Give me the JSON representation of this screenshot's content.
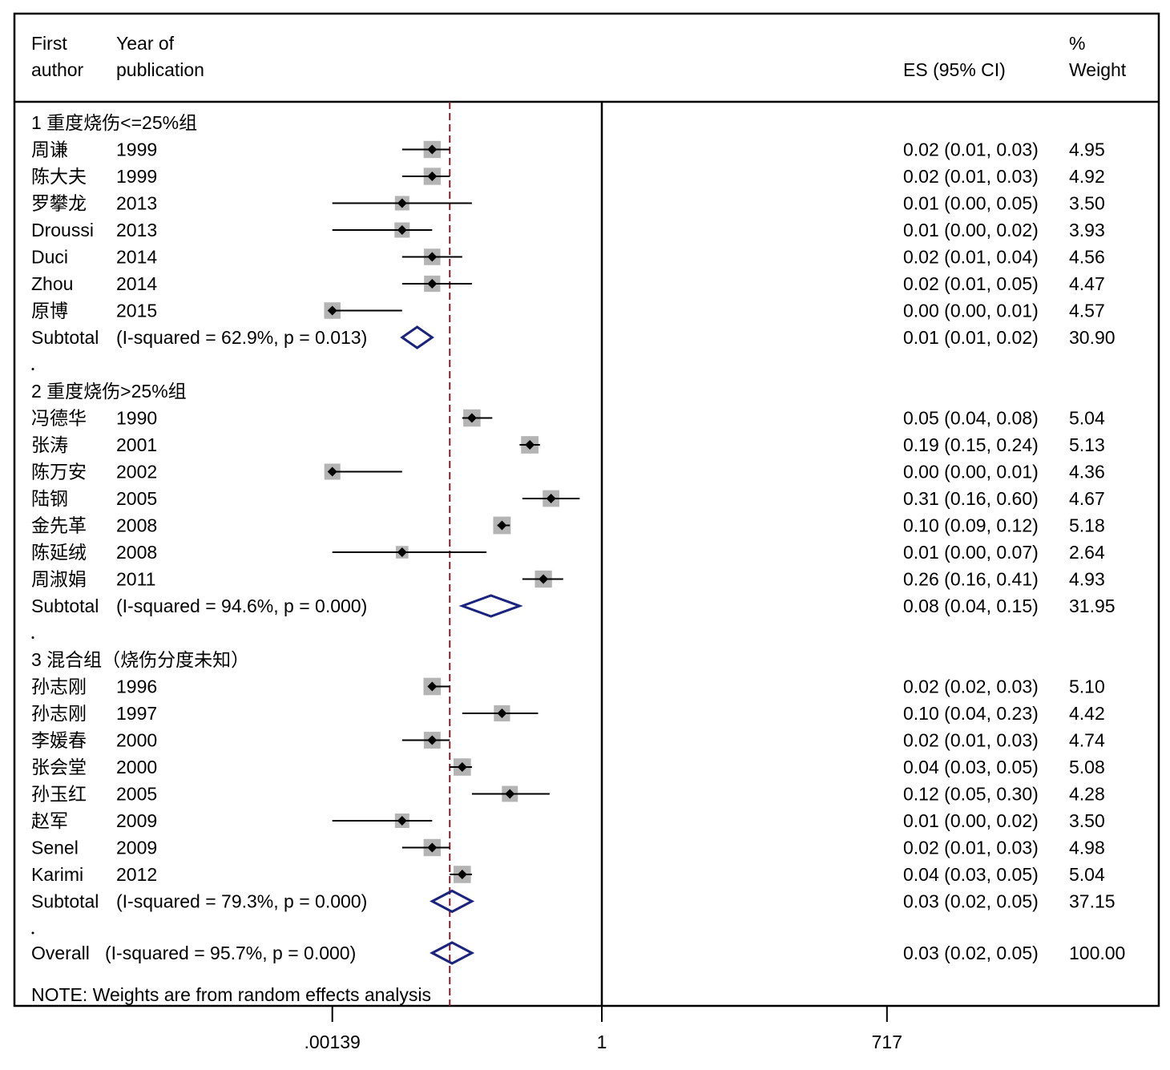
{
  "header": {
    "author_line1": "First",
    "author_line2": "author",
    "year_line1": "Year of",
    "year_line2": "publication",
    "es_label": "ES (95% CI)",
    "weight_line1": "%",
    "weight_line2": "Weight"
  },
  "note": "NOTE: Weights are from random effects analysis",
  "colors": {
    "ci_line": "#000000",
    "weight_box": "#b4b4b4",
    "diamond": "#1a237e",
    "null_line": "#8b1a2b"
  },
  "chart_data": {
    "type": "forest",
    "x_scale": "log",
    "x_ticks": [
      {
        "value": 0.00139,
        "label": ".00139"
      },
      {
        "value": 1,
        "label": "1"
      },
      {
        "value": 717,
        "label": "717"
      }
    ],
    "overall_reference": 0.03,
    "groups": [
      {
        "heading": "1 重度烧伤<=25%组",
        "studies": [
          {
            "author": "周谦",
            "year": "1999",
            "es": 0.02,
            "lo": 0.01,
            "hi": 0.03,
            "es_text": "0.02 (0.01, 0.03)",
            "weight": "4.95"
          },
          {
            "author": "陈大夫",
            "year": "1999",
            "es": 0.02,
            "lo": 0.01,
            "hi": 0.03,
            "es_text": "0.02 (0.01, 0.03)",
            "weight": "4.92"
          },
          {
            "author": "罗攀龙",
            "year": "2013",
            "es": 0.01,
            "lo": 0.0,
            "hi": 0.05,
            "es_text": "0.01 (0.00, 0.05)",
            "weight": "3.50"
          },
          {
            "author": "Droussi",
            "year": "2013",
            "es": 0.01,
            "lo": 0.0,
            "hi": 0.02,
            "es_text": "0.01 (0.00, 0.02)",
            "weight": "3.93"
          },
          {
            "author": "Duci",
            "year": "2014",
            "es": 0.02,
            "lo": 0.01,
            "hi": 0.04,
            "es_text": "0.02 (0.01, 0.04)",
            "weight": "4.56"
          },
          {
            "author": "Zhou",
            "year": "2014",
            "es": 0.02,
            "lo": 0.01,
            "hi": 0.05,
            "es_text": "0.02 (0.01, 0.05)",
            "weight": "4.47"
          },
          {
            "author": "原博",
            "year": "2015",
            "es": 0.0,
            "lo": 0.0,
            "hi": 0.01,
            "es_text": "0.00 (0.00, 0.01)",
            "weight": "4.57"
          }
        ],
        "subtotal": {
          "label": "Subtotal",
          "stats": "(I-squared = 62.9%, p = 0.013)",
          "es": 0.01,
          "lo": 0.01,
          "hi": 0.02,
          "es_text": "0.01 (0.01, 0.02)",
          "weight": "30.90"
        }
      },
      {
        "heading": "2 重度烧伤>25%组",
        "studies": [
          {
            "author": "冯德华",
            "year": "1990",
            "es": 0.05,
            "lo": 0.04,
            "hi": 0.08,
            "es_text": "0.05 (0.04, 0.08)",
            "weight": "5.04"
          },
          {
            "author": "张涛",
            "year": "2001",
            "es": 0.19,
            "lo": 0.15,
            "hi": 0.24,
            "es_text": "0.19 (0.15, 0.24)",
            "weight": "5.13"
          },
          {
            "author": "陈万安",
            "year": "2002",
            "es": 0.0,
            "lo": 0.0,
            "hi": 0.01,
            "es_text": "0.00 (0.00, 0.01)",
            "weight": "4.36"
          },
          {
            "author": "陆钢",
            "year": "2005",
            "es": 0.31,
            "lo": 0.16,
            "hi": 0.6,
            "es_text": "0.31 (0.16, 0.60)",
            "weight": "4.67"
          },
          {
            "author": "金先革",
            "year": "2008",
            "es": 0.1,
            "lo": 0.09,
            "hi": 0.12,
            "es_text": "0.10 (0.09, 0.12)",
            "weight": "5.18"
          },
          {
            "author": "陈延绒",
            "year": "2008",
            "es": 0.01,
            "lo": 0.0,
            "hi": 0.07,
            "es_text": "0.01 (0.00, 0.07)",
            "weight": "2.64"
          },
          {
            "author": "周淑娟",
            "year": "2011",
            "es": 0.26,
            "lo": 0.16,
            "hi": 0.41,
            "es_text": "0.26 (0.16, 0.41)",
            "weight": "4.93"
          }
        ],
        "subtotal": {
          "label": "Subtotal",
          "stats": "(I-squared = 94.6%, p = 0.000)",
          "es": 0.08,
          "lo": 0.04,
          "hi": 0.15,
          "es_text": "0.08 (0.04, 0.15)",
          "weight": "31.95"
        }
      },
      {
        "heading": "3 混合组（烧伤分度未知）",
        "studies": [
          {
            "author": "孙志刚",
            "year": "1996",
            "es": 0.02,
            "lo": 0.02,
            "hi": 0.03,
            "es_text": "0.02 (0.02, 0.03)",
            "weight": "5.10"
          },
          {
            "author": "孙志刚",
            "year": "1997",
            "es": 0.1,
            "lo": 0.04,
            "hi": 0.23,
            "es_text": "0.10 (0.04, 0.23)",
            "weight": "4.42"
          },
          {
            "author": "李媛春",
            "year": "2000",
            "es": 0.02,
            "lo": 0.01,
            "hi": 0.03,
            "es_text": "0.02 (0.01, 0.03)",
            "weight": "4.74"
          },
          {
            "author": "张会堂",
            "year": "2000",
            "es": 0.04,
            "lo": 0.03,
            "hi": 0.05,
            "es_text": "0.04 (0.03, 0.05)",
            "weight": "5.08"
          },
          {
            "author": "孙玉红",
            "year": "2005",
            "es": 0.12,
            "lo": 0.05,
            "hi": 0.3,
            "es_text": "0.12 (0.05, 0.30)",
            "weight": "4.28"
          },
          {
            "author": "赵军",
            "year": "2009",
            "es": 0.01,
            "lo": 0.0,
            "hi": 0.02,
            "es_text": "0.01 (0.00, 0.02)",
            "weight": "3.50"
          },
          {
            "author": "Senel",
            "year": "2009",
            "es": 0.02,
            "lo": 0.01,
            "hi": 0.03,
            "es_text": "0.02 (0.01, 0.03)",
            "weight": "4.98"
          },
          {
            "author": "Karimi",
            "year": "2012",
            "es": 0.04,
            "lo": 0.03,
            "hi": 0.05,
            "es_text": "0.04 (0.03, 0.05)",
            "weight": "5.04"
          }
        ],
        "subtotal": {
          "label": "Subtotal",
          "stats": "(I-squared = 79.3%, p = 0.000)",
          "es": 0.03,
          "lo": 0.02,
          "hi": 0.05,
          "es_text": "0.03 (0.02, 0.05)",
          "weight": "37.15"
        }
      }
    ],
    "overall": {
      "label": "Overall",
      "stats": "(I-squared = 95.7%, p = 0.000)",
      "es": 0.03,
      "lo": 0.02,
      "hi": 0.05,
      "es_text": "0.03 (0.02, 0.05)",
      "weight": "100.00"
    }
  }
}
